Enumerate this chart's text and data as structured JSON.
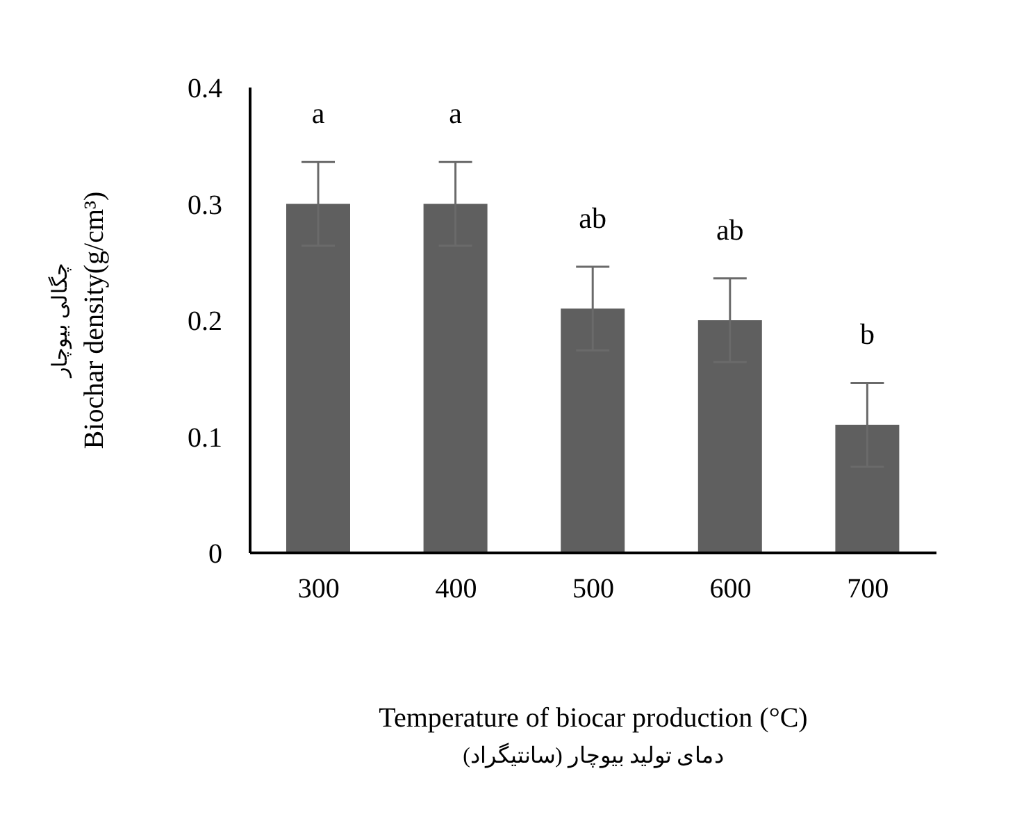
{
  "chart_data": {
    "type": "bar",
    "categories": [
      "300",
      "400",
      "500",
      "600",
      "700"
    ],
    "values": [
      0.3,
      0.3,
      0.21,
      0.2,
      0.11
    ],
    "errors": [
      0.036,
      0.036,
      0.036,
      0.036,
      0.036
    ],
    "color": "#5f5f5f",
    "ylim": [
      0,
      0.4
    ],
    "yticks": [
      0,
      0.1,
      0.2,
      0.3,
      0.4
    ],
    "grid": false,
    "legend": false,
    "xlabel": "Temperature of biocar production (°C)\nدمای تولید بیوچار (سانتیگراد)",
    "ylabel": "چگالی بیوچار\nBiochar density(g/cm³)",
    "annotations": [
      "a",
      "a",
      "ab",
      "ab",
      "b"
    ]
  }
}
